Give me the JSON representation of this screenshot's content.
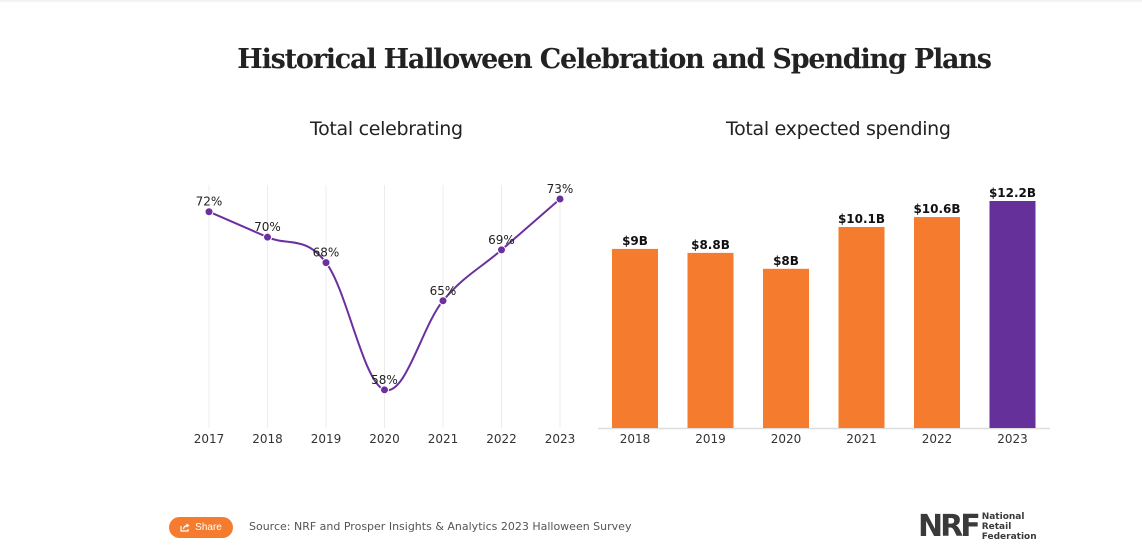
{
  "title": "Historical Halloween Celebration and Spending Plans",
  "chart_data": [
    {
      "type": "line",
      "title": "Total celebrating",
      "categories": [
        "2017",
        "2018",
        "2019",
        "2020",
        "2021",
        "2022",
        "2023"
      ],
      "values": [
        72,
        70,
        68,
        58,
        65,
        69,
        73
      ],
      "labels": [
        "72%",
        "70%",
        "68%",
        "58%",
        "65%",
        "69%",
        "73%"
      ],
      "unit": "%",
      "xlabel": "",
      "ylabel": "",
      "ylim": [
        55,
        74
      ],
      "grid": "vertical",
      "color": "#6b2fa0",
      "smooth": true
    },
    {
      "type": "bar",
      "title": "Total expected spending",
      "categories": [
        "2018",
        "2019",
        "2020",
        "2021",
        "2022",
        "2023"
      ],
      "values": [
        9,
        8.8,
        8,
        10.1,
        10.6,
        12.2
      ],
      "labels": [
        "$9B",
        "$8.8B",
        "$8B",
        "$10.1B",
        "$10.6B",
        "$12.2B"
      ],
      "unit": "billion USD",
      "xlabel": "",
      "ylabel": "",
      "ylim": [
        0,
        12.5
      ],
      "colors": [
        "#f57c2e",
        "#f57c2e",
        "#f57c2e",
        "#f57c2e",
        "#f57c2e",
        "#65309a"
      ],
      "highlight": "2023"
    }
  ],
  "footer": {
    "share_label": "Share",
    "share_icon": "share-icon",
    "source": "Source: NRF and Prosper Insights & Analytics 2023 Halloween Survey"
  },
  "logo": {
    "mark": "NRF",
    "lines": [
      "National",
      "Retail",
      "Federation"
    ]
  },
  "colors": {
    "accent_orange": "#f57c2e",
    "accent_purple": "#65309a",
    "line_purple": "#6b2fa0"
  }
}
